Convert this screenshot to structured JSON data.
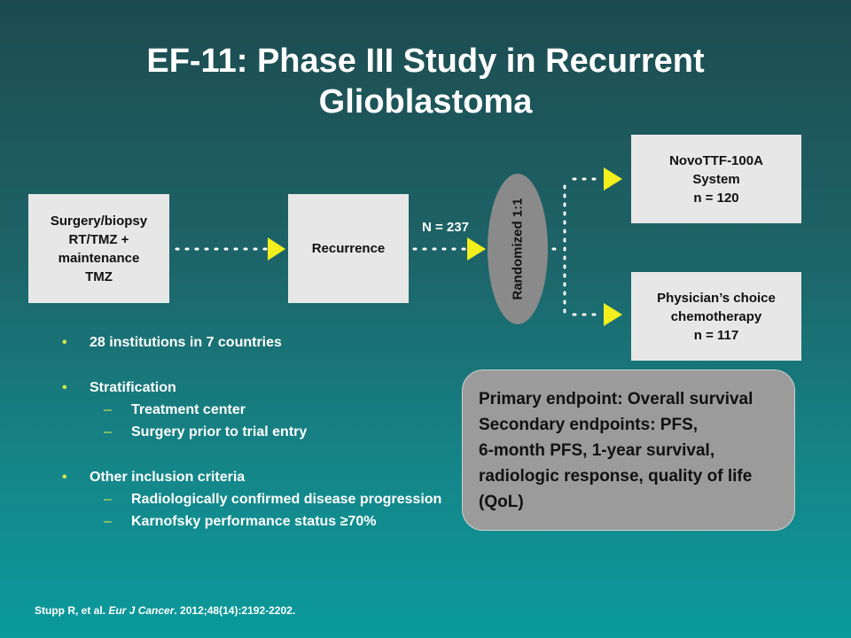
{
  "title": {
    "line1": "EF-11: Phase III Study in Recurrent",
    "line2": "Glioblastoma"
  },
  "flow": {
    "surgery_box": [
      "Surgery/biopsy",
      "RT/TMZ +",
      "maintenance",
      "TMZ"
    ],
    "recurrence_box": "Recurrence",
    "n_label": "N = 237",
    "randomized_label": "Randomized 1:1",
    "arm_novottf": [
      "NovoTTF-100A",
      "System",
      "n = 120"
    ],
    "arm_physician": [
      "Physician’s choice",
      "chemotherapy",
      "n = 117"
    ]
  },
  "bullets": {
    "institutions": "28 institutions  in 7 countries",
    "stratification": "Stratification",
    "strat_items": [
      "Treatment center",
      "Surgery prior  to trial entry"
    ],
    "inclusion": "Other inclusion criteria",
    "inclusion_items": [
      "Radiologically  confirmed  disease progression",
      "Karnofsky  performance  status ≥70%"
    ]
  },
  "endpoints": {
    "line1": "Primary endpoint: Overall survival",
    "line2": "Secondary endpoints: PFS,",
    "line3": "6-month PFS, 1-year survival,",
    "line4": "radiologic response, quality of life",
    "line5": "(QoL)"
  },
  "citation": {
    "authors": "Stupp R, et al. ",
    "journal": "Eur J Cancer",
    "details": ". 2012;48(14):2192-2202."
  },
  "colors": {
    "arrow_yellow": "#f3ef1c",
    "box_gray": "#e7e7e7",
    "ellipse_gray": "#8a8a8a",
    "bullet_yellow": "#d6e84a"
  }
}
